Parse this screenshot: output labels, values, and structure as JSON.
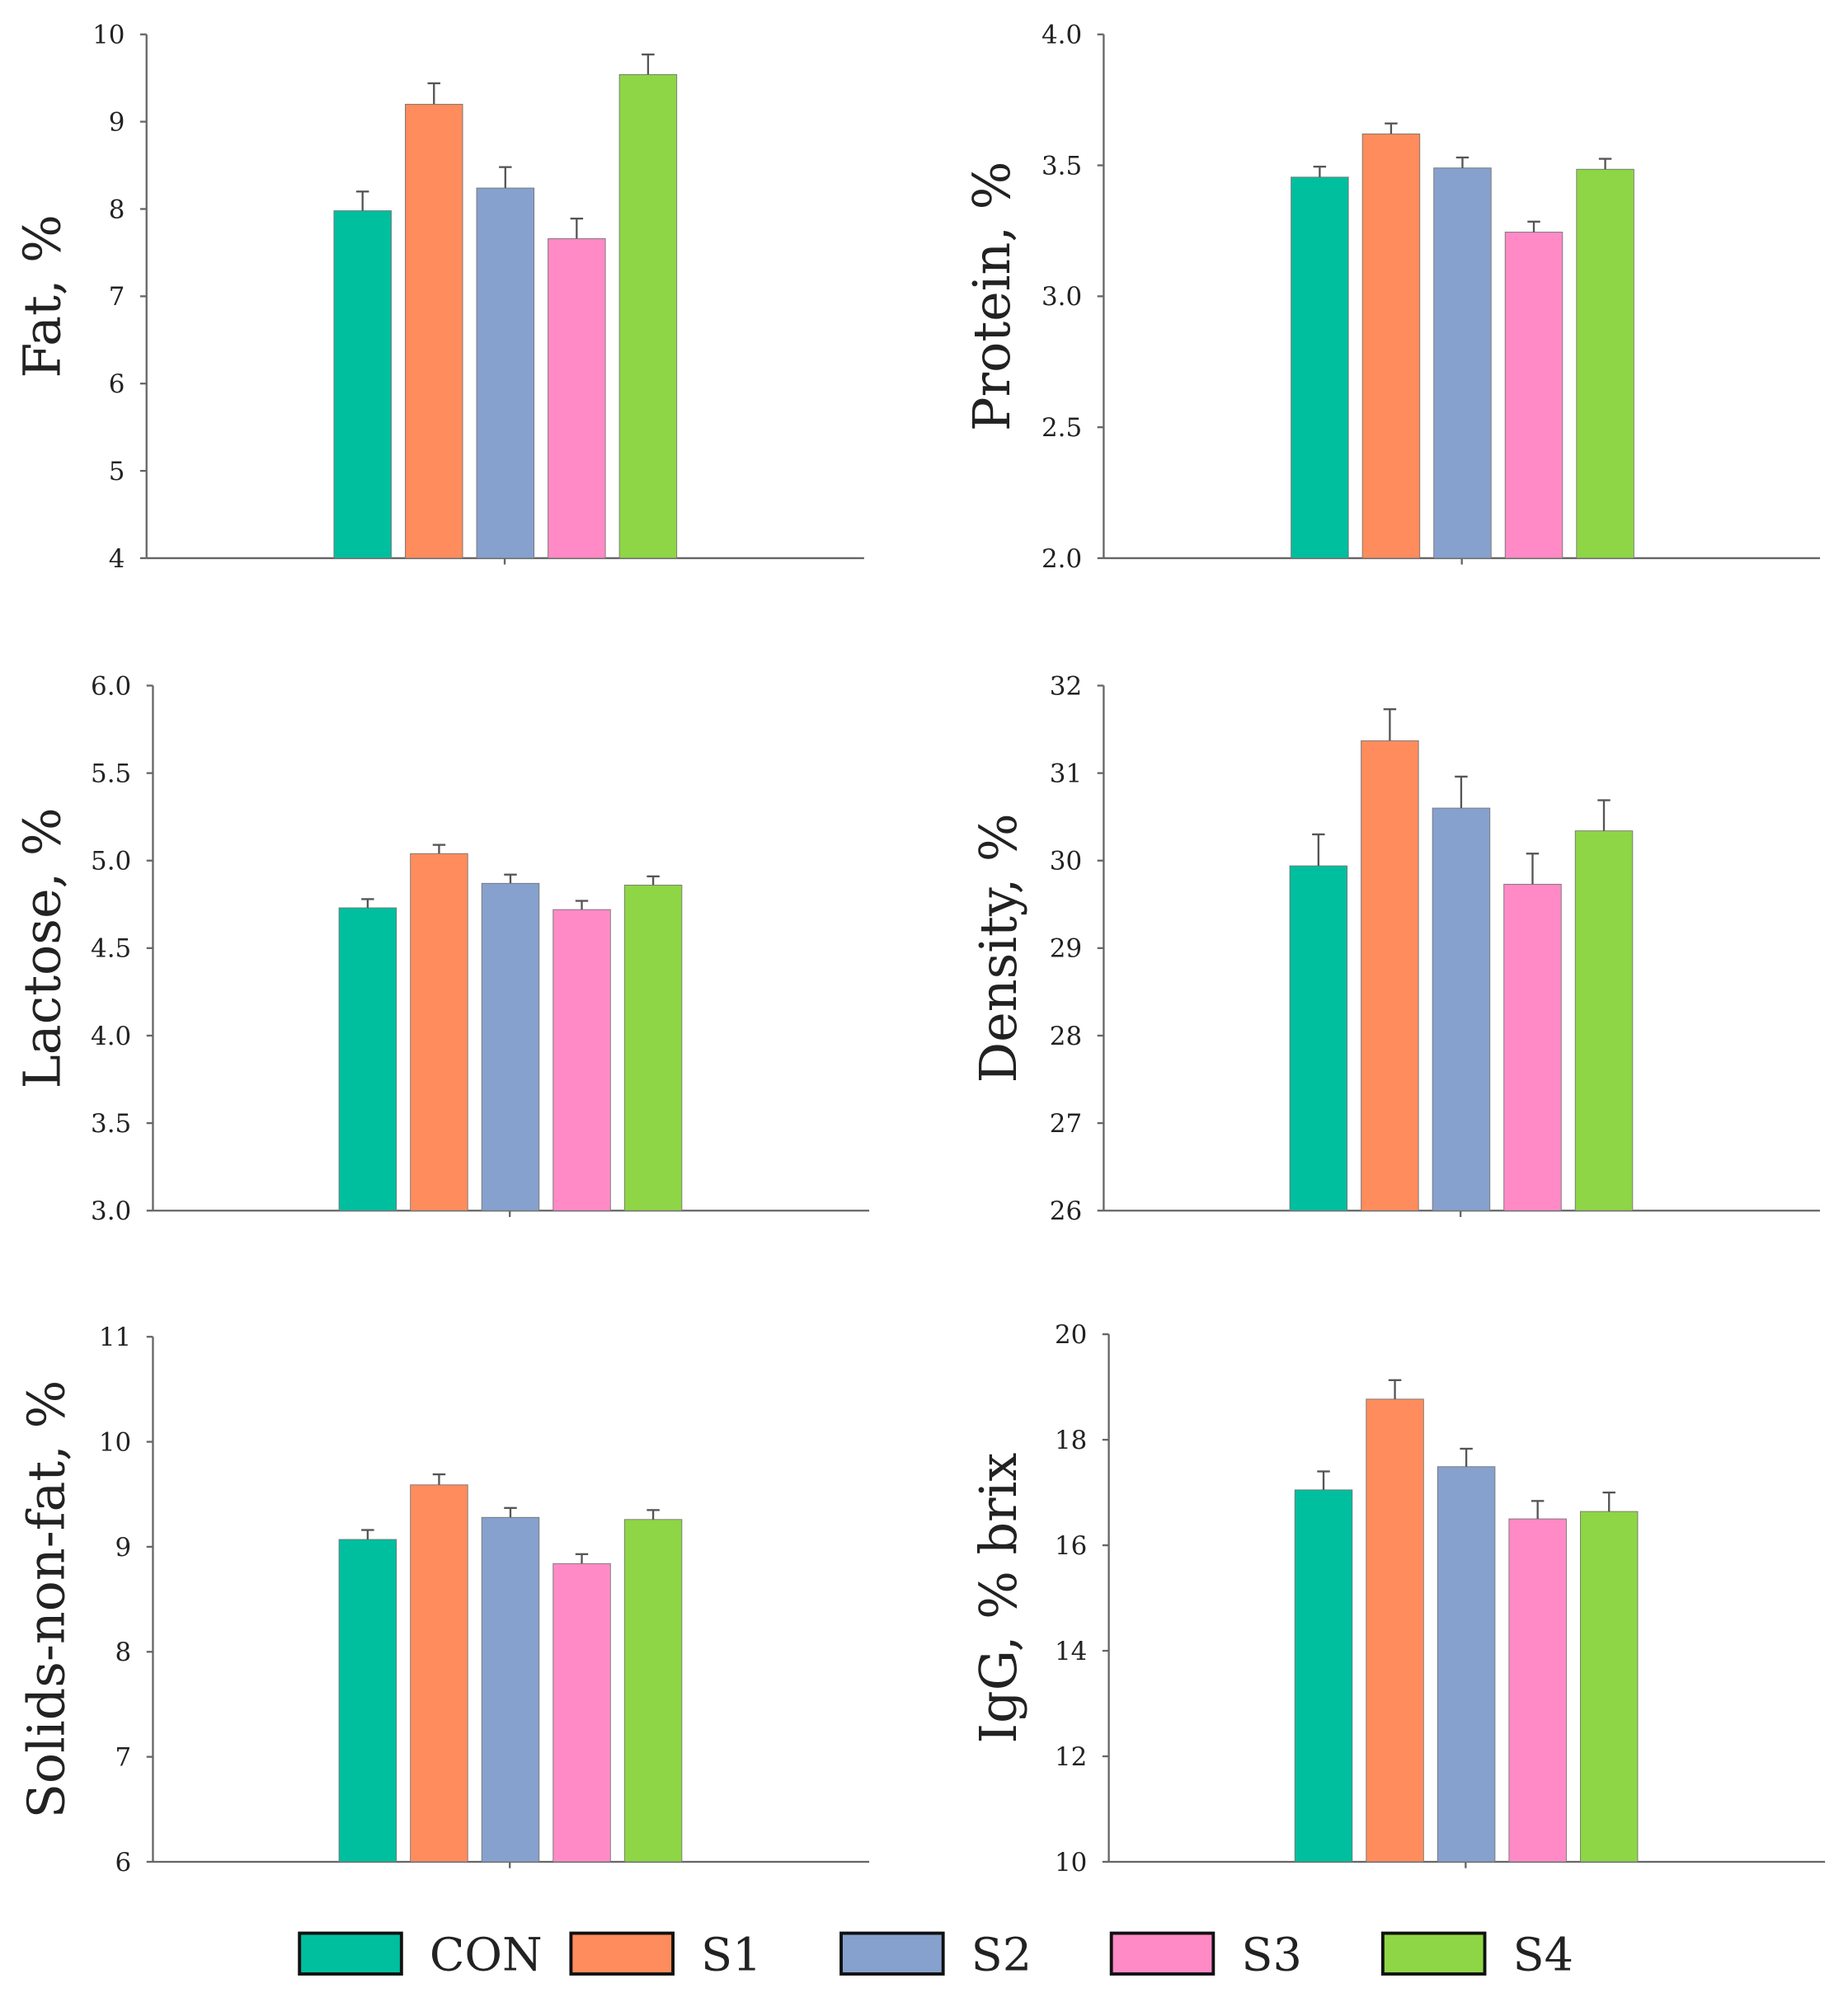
{
  "chart_data": [
    {
      "type": "bar",
      "ylabel": "Fat, %",
      "ylim": [
        4,
        10
      ],
      "yticks": [
        "4",
        "5",
        "6",
        "7",
        "8",
        "9",
        "10"
      ],
      "categories": [
        "CON",
        "S1",
        "S2",
        "S3",
        "S4"
      ],
      "values": [
        7.98,
        9.2,
        8.24,
        7.66,
        9.54
      ],
      "errors": [
        0.22,
        0.24,
        0.24,
        0.23,
        0.23
      ]
    },
    {
      "type": "bar",
      "ylabel": "Protein, %",
      "ylim": [
        2,
        4
      ],
      "yticks": [
        "2.0",
        "2.5",
        "3.0",
        "3.5",
        "4.0"
      ],
      "categories": [
        "CON",
        "S1",
        "S2",
        "S3",
        "S4"
      ],
      "values": [
        3.455,
        3.62,
        3.49,
        3.245,
        3.485
      ],
      "errors": [
        0.04,
        0.04,
        0.04,
        0.04,
        0.04
      ]
    },
    {
      "type": "bar",
      "ylabel": "Lactose, %",
      "ylim": [
        3,
        6
      ],
      "yticks": [
        "3.0",
        "3.5",
        "4.0",
        "4.5",
        "5.0",
        "5.5",
        "6.0"
      ],
      "categories": [
        "CON",
        "S1",
        "S2",
        "S3",
        "S4"
      ],
      "values": [
        4.73,
        5.04,
        4.87,
        4.72,
        4.86
      ],
      "errors": [
        0.05,
        0.05,
        0.05,
        0.05,
        0.05
      ]
    },
    {
      "type": "bar",
      "ylabel": "Density, %",
      "ylim": [
        26,
        32
      ],
      "yticks": [
        "26",
        "27",
        "28",
        "29",
        "30",
        "31",
        "32"
      ],
      "categories": [
        "CON",
        "S1",
        "S2",
        "S3",
        "S4"
      ],
      "values": [
        29.94,
        31.37,
        30.6,
        29.73,
        30.34
      ],
      "errors": [
        0.36,
        0.36,
        0.36,
        0.35,
        0.35
      ]
    },
    {
      "type": "bar",
      "ylabel": "Solids-non-fat, %",
      "ylim": [
        6,
        11
      ],
      "yticks": [
        "6",
        "7",
        "8",
        "9",
        "10",
        "11"
      ],
      "categories": [
        "CON",
        "S1",
        "S2",
        "S3",
        "S4"
      ],
      "values": [
        9.07,
        9.59,
        9.28,
        8.84,
        9.26
      ],
      "errors": [
        0.09,
        0.1,
        0.09,
        0.09,
        0.09
      ]
    },
    {
      "type": "bar",
      "ylabel": "IgG, % brix",
      "ylim": [
        10,
        20
      ],
      "yticks": [
        "10",
        "12",
        "14",
        "16",
        "18",
        "20"
      ],
      "categories": [
        "CON",
        "S1",
        "S2",
        "S3",
        "S4"
      ],
      "values": [
        17.05,
        18.77,
        17.49,
        16.5,
        16.64
      ],
      "errors": [
        0.35,
        0.36,
        0.34,
        0.34,
        0.36
      ]
    }
  ],
  "legend": {
    "position": "bottom",
    "items": [
      {
        "label": "CON",
        "color": "#00bf9f"
      },
      {
        "label": "S1",
        "color": "#ff8c5c"
      },
      {
        "label": "S2",
        "color": "#86a1cd"
      },
      {
        "label": "S3",
        "color": "#ff8ac6"
      },
      {
        "label": "S4",
        "color": "#8ed645"
      }
    ]
  }
}
